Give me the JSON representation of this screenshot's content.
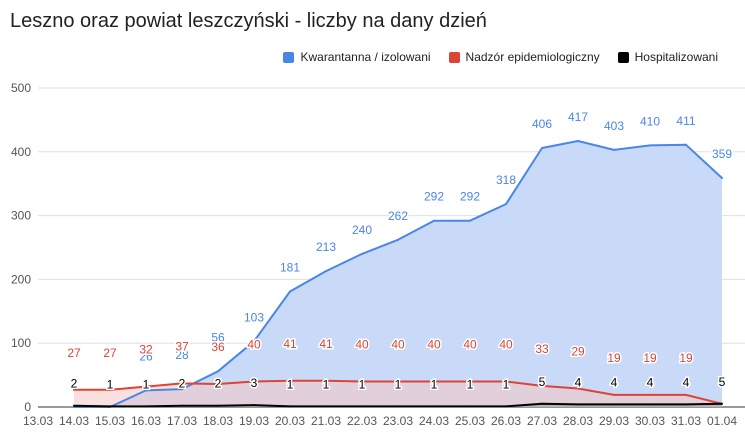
{
  "chart_data": {
    "type": "area",
    "title": "Leszno oraz powiat leszczyński - liczby na dany dzień",
    "xlabel": "",
    "ylabel": "",
    "categories": [
      "13.03",
      "14.03",
      "15.03",
      "16.03",
      "17.03",
      "18.03",
      "19.03",
      "20.03",
      "21.03",
      "22.03",
      "23.03",
      "24.03",
      "25.03",
      "26.03",
      "27.03",
      "28.03",
      "29.03",
      "30.03",
      "31.03",
      "01.04"
    ],
    "x_extra_tick": "0",
    "ylim": [
      0,
      500
    ],
    "yticks": [
      "0",
      "100",
      "200",
      "300",
      "400",
      "500"
    ],
    "grid": true,
    "legend_position": "top-right",
    "series": [
      {
        "name": "Kwarantanna / izolowani",
        "color": "#4a86e8",
        "fill": "#c9daf8",
        "values": [
          null,
          0,
          0,
          26,
          28,
          56,
          103,
          181,
          213,
          240,
          262,
          292,
          292,
          318,
          406,
          417,
          403,
          410,
          411,
          359
        ]
      },
      {
        "name": "Nadzór epidemiologiczny",
        "color": "#db4437",
        "fill": "#f4c7c3",
        "values": [
          null,
          27,
          27,
          32,
          37,
          36,
          40,
          41,
          41,
          40,
          40,
          40,
          40,
          40,
          33,
          29,
          19,
          19,
          19,
          5
        ]
      },
      {
        "name": "Hospitalizowani",
        "color": "#000000",
        "fill": "#999999",
        "values": [
          null,
          2,
          1,
          1,
          2,
          2,
          3,
          1,
          1,
          1,
          1,
          1,
          1,
          1,
          5,
          4,
          4,
          4,
          4,
          5
        ]
      }
    ],
    "data_labels": {
      "Kwarantanna / izolowani": [
        "",
        "",
        "",
        "26",
        "28",
        "56",
        "103",
        "181",
        "213",
        "240",
        "262",
        "292",
        "292",
        "318",
        "406",
        "417",
        "403",
        "410",
        "411",
        "359"
      ],
      "Nadzór epidemiologiczny": [
        "",
        "27",
        "27",
        "32",
        "37",
        "36",
        "40",
        "41",
        "41",
        "40",
        "40",
        "40",
        "40",
        "40",
        "33",
        "29",
        "19",
        "19",
        "19",
        ""
      ],
      "Hospitalizowani": [
        "",
        "2",
        "1",
        "1",
        "2",
        "2",
        "3",
        "1",
        "1",
        "1",
        "1",
        "1",
        "1",
        "1",
        "5",
        "4",
        "4",
        "4",
        "4",
        "5"
      ]
    }
  }
}
